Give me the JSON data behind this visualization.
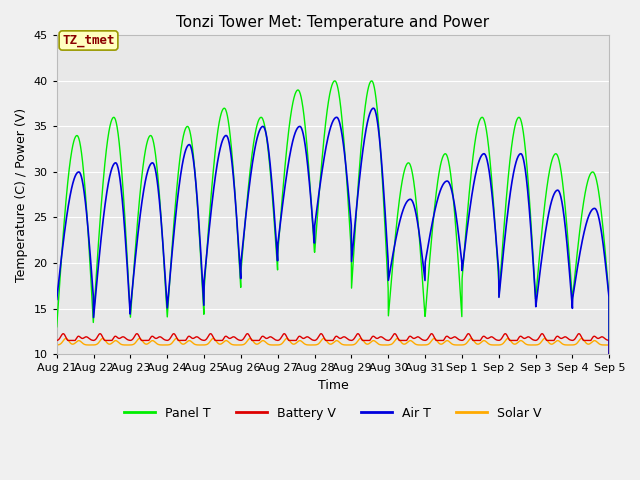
{
  "title": "Tonzi Tower Met: Temperature and Power",
  "xlabel": "Time",
  "ylabel": "Temperature (C) / Power (V)",
  "ylim": [
    10,
    45
  ],
  "xtick_labels": [
    "Aug 21",
    "Aug 22",
    "Aug 23",
    "Aug 24",
    "Aug 25",
    "Aug 26",
    "Aug 27",
    "Aug 28",
    "Aug 29",
    "Aug 30",
    "Aug 31",
    "Sep 1",
    "Sep 2",
    "Sep 3",
    "Sep 4",
    "Sep 5"
  ],
  "annotation_text": "TZ_tmet",
  "annotation_bg": "#ffffc0",
  "annotation_fg": "#8b0000",
  "bg_inner": "#e8e8e8",
  "bg_outer": "#f0f0f0",
  "grid_color": "#ffffff",
  "panel_color": "#00ee00",
  "battery_color": "#dd0000",
  "air_color": "#0000dd",
  "solar_color": "#ffaa00",
  "legend_labels": [
    "Panel T",
    "Battery V",
    "Air T",
    "Solar V"
  ],
  "n_days": 15,
  "panel_peaks": [
    34,
    36,
    34,
    35,
    37,
    36,
    39,
    40,
    40,
    31,
    32,
    36,
    36,
    32,
    30
  ],
  "panel_troughs": [
    13,
    14,
    14,
    14,
    17,
    19,
    21,
    21,
    17,
    14,
    14,
    18,
    16,
    16,
    16
  ],
  "air_peaks": [
    30,
    31,
    31,
    33,
    34,
    35,
    35,
    36,
    37,
    27,
    29,
    32,
    32,
    28,
    26
  ],
  "air_troughs": [
    16,
    14,
    15,
    15,
    18,
    20,
    22,
    24,
    20,
    18,
    20,
    19,
    16,
    15,
    16
  ],
  "battery_base": 11.8,
  "battery_amp": 0.8,
  "solar_base": 11.0,
  "solar_amp": 0.6,
  "title_fontsize": 11,
  "axis_fontsize": 9,
  "tick_fontsize": 8
}
